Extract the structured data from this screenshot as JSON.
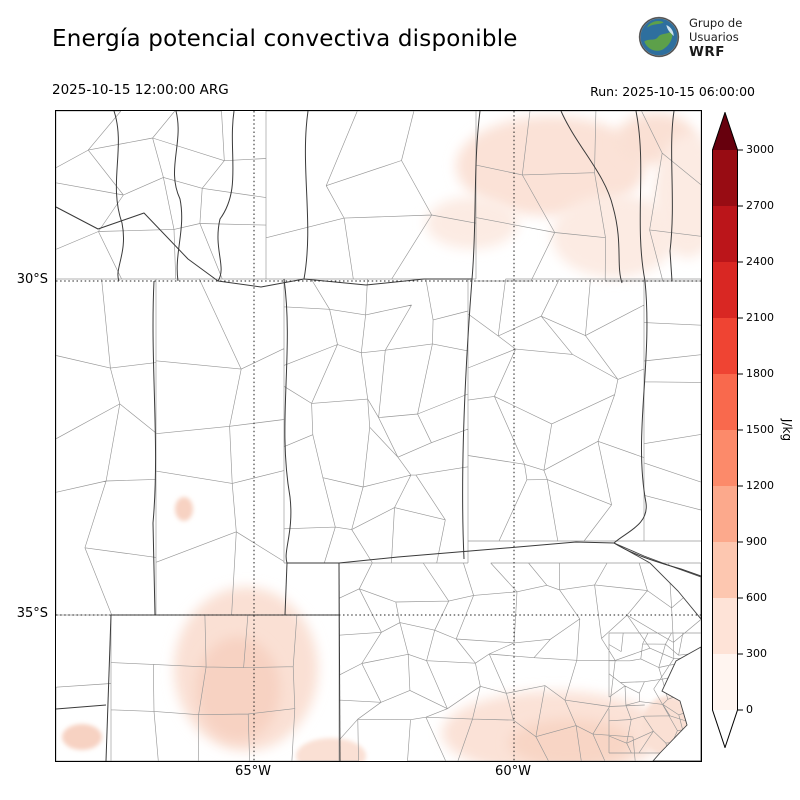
{
  "header": {
    "title": "Energía potencial convectiva disponible",
    "valid_time": "2025-10-15 12:00:00 ARG",
    "run_time": "Run: 2025-10-15 06:00:00",
    "logo": {
      "line1": "Grupo de",
      "line2": "Usuarios",
      "line3": "WRF"
    }
  },
  "map": {
    "lat_ticks": [
      "30°S",
      "35°S"
    ],
    "lon_ticks": [
      "65°W",
      "60°W"
    ]
  },
  "colorbar": {
    "unit": "J/kg",
    "vmin": 0,
    "vmax": 3000,
    "interval": 300,
    "tick_values": [
      0,
      300,
      600,
      900,
      1200,
      1500,
      1800,
      2100,
      2400,
      2700,
      3000
    ],
    "band_colors_low_to_high": [
      "#fff5f0",
      "#fee3d7",
      "#fdc7b0",
      "#fca98c",
      "#fc8a6a",
      "#f9694d",
      "#ef4433",
      "#d92723",
      "#bb151a",
      "#980c13"
    ],
    "over_color": "#67000d",
    "under_color": "#ffffff"
  },
  "cape_field": {
    "variable": "CAPE (energía potencial convectiva disponible)",
    "units": "J/kg",
    "shaded_regions": [
      {
        "area": "noreste del dominio (norte de Santa Fe / Chaco)",
        "value_range": "0-300"
      },
      {
        "area": "centro-norte del dominio",
        "value_range": "0-300"
      },
      {
        "area": "sudoeste (La Pampa / sur de San Luis)",
        "value_range": "0-300"
      },
      {
        "area": "sur de Buenos Aires y costa",
        "value_range": "0-300"
      }
    ]
  }
}
